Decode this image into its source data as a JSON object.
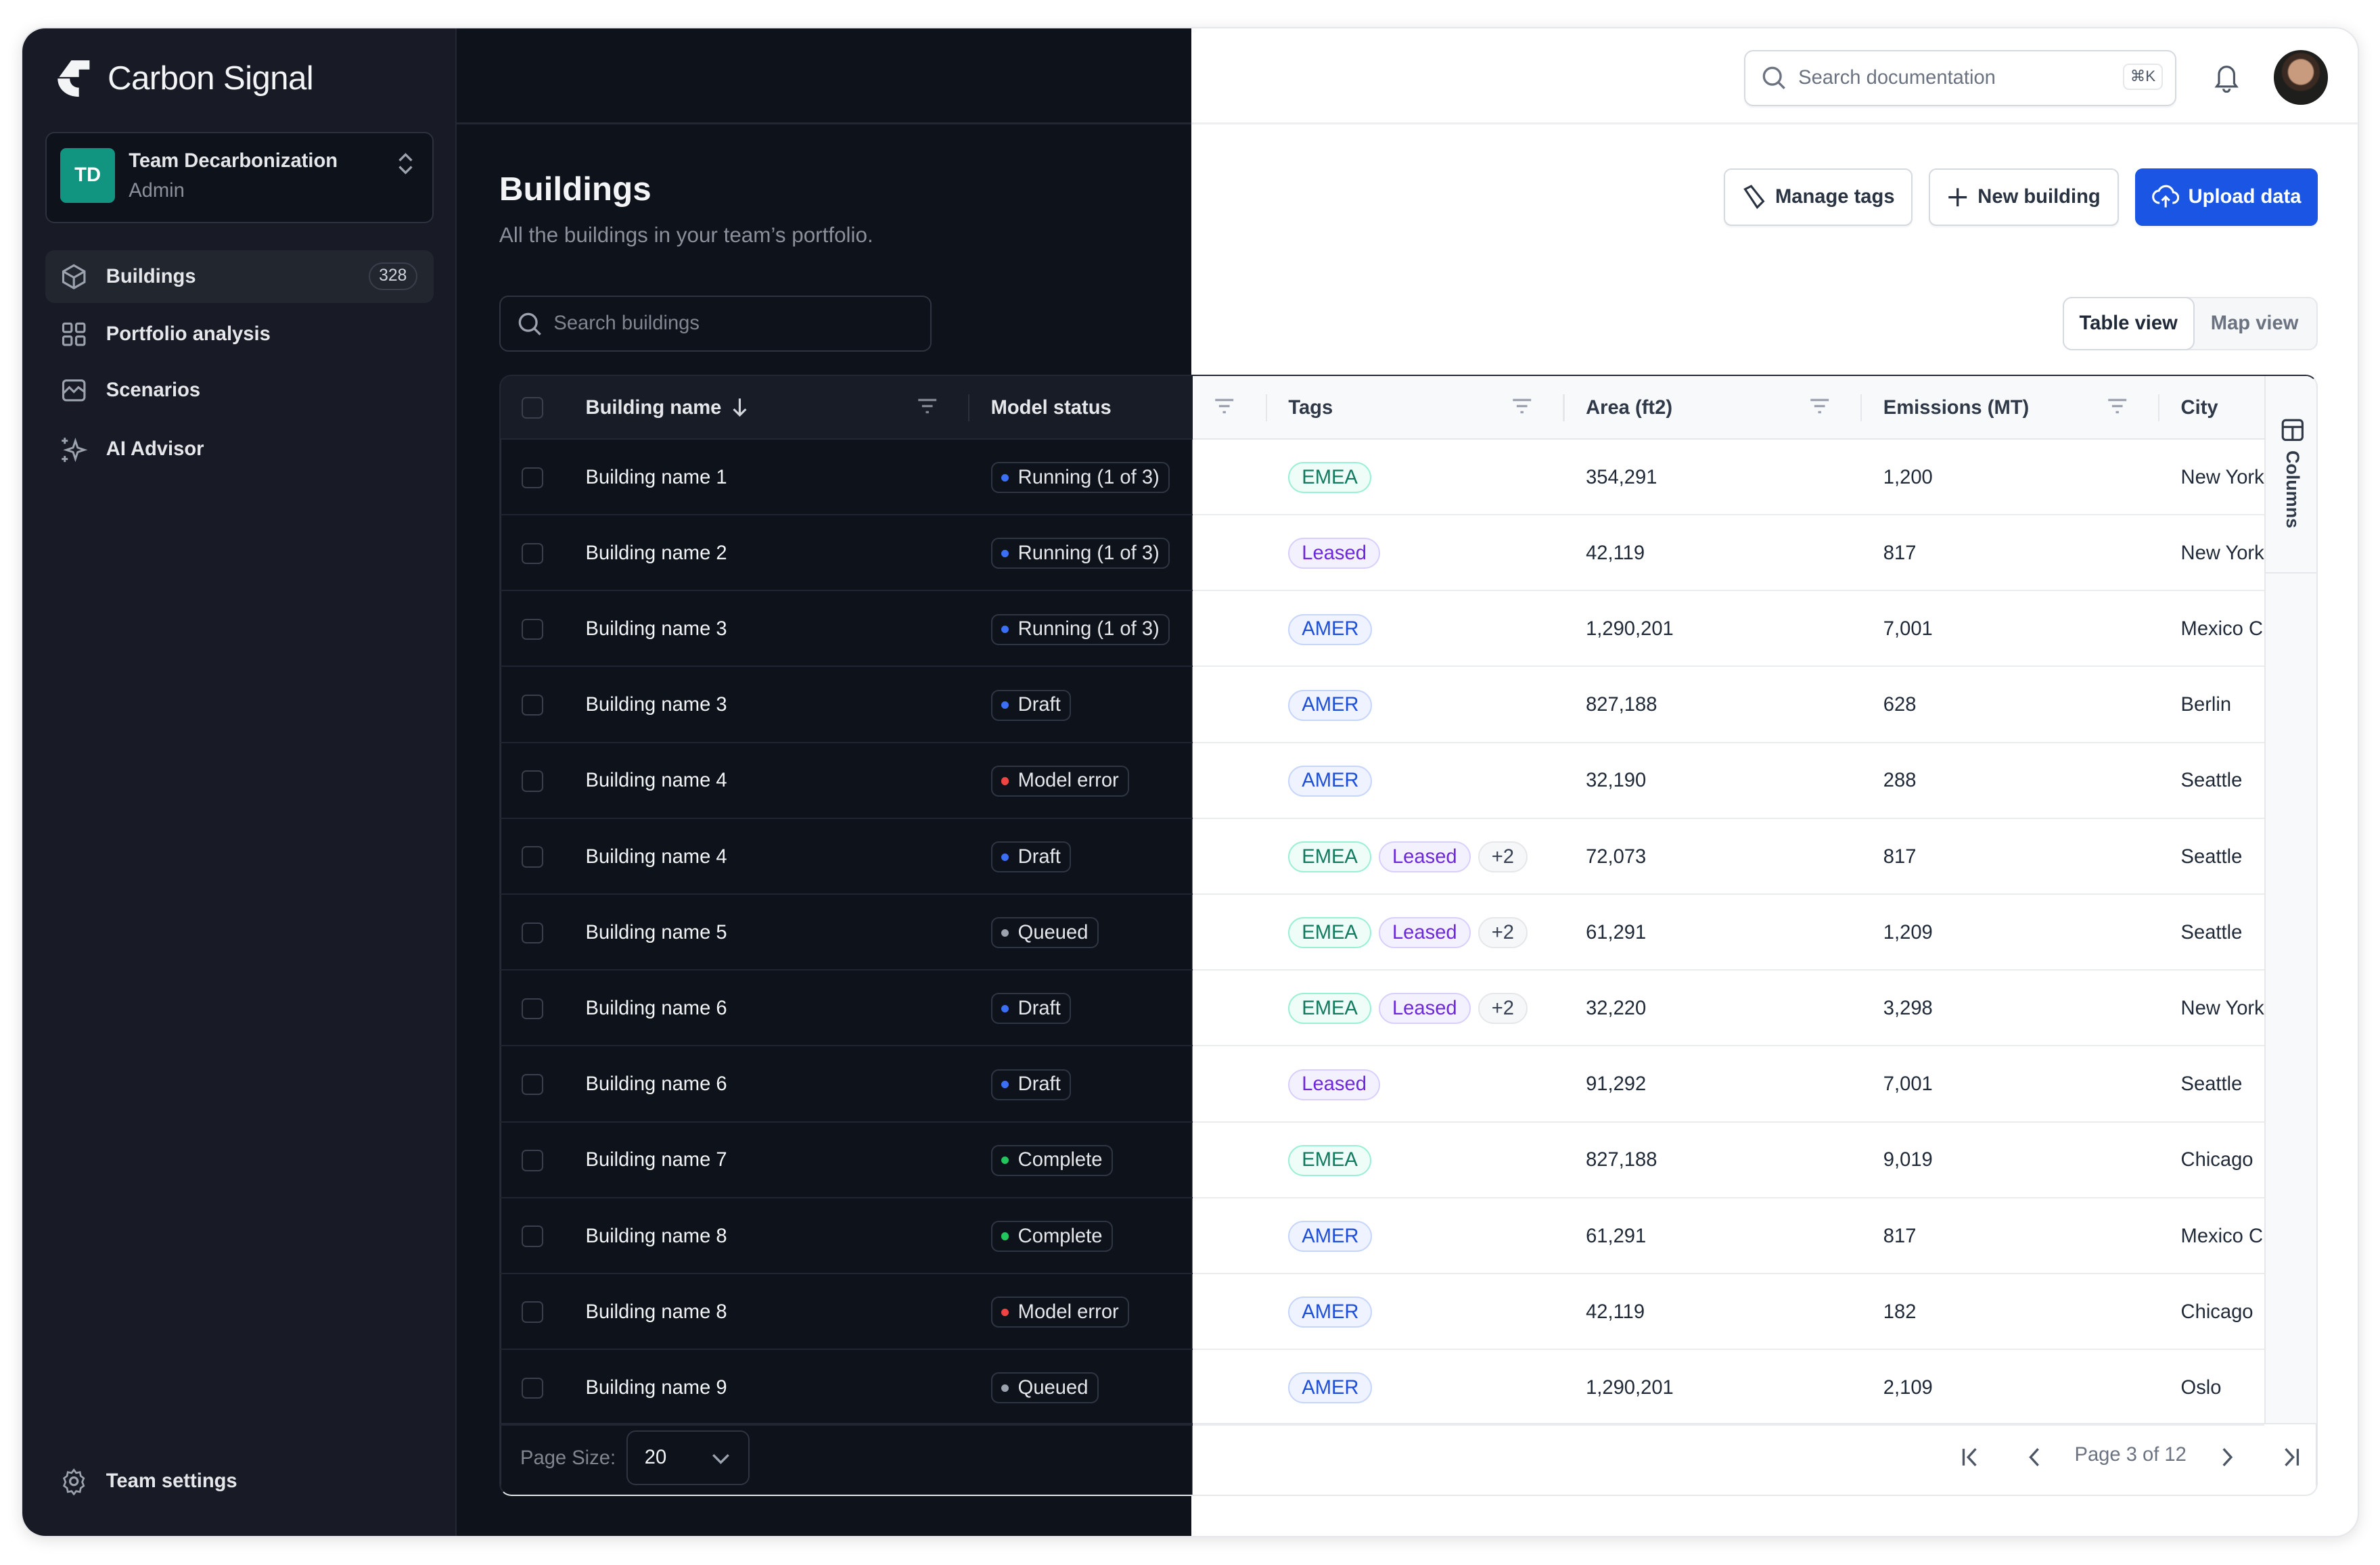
{
  "app": {
    "name": "Carbon Signal"
  },
  "team": {
    "initials": "TD",
    "name": "Team Decarbonization",
    "role": "Admin"
  },
  "sidebar": {
    "items": [
      {
        "label": "Buildings",
        "count": "328",
        "icon": "cube-icon",
        "active": true
      },
      {
        "label": "Portfolio analysis",
        "icon": "grid-icon"
      },
      {
        "label": "Scenarios",
        "icon": "chart-icon"
      },
      {
        "label": "AI Advisor",
        "icon": "sparkles-icon"
      }
    ],
    "settings": "Team settings"
  },
  "topbar": {
    "search_placeholder": "Search documentation",
    "shortcut": "⌘K"
  },
  "page": {
    "title": "Buildings",
    "subtitle": "All the buildings in your team’s portfolio.",
    "search_placeholder": "Search buildings"
  },
  "actions": {
    "manage_tags": "Manage tags",
    "new_building": "New building",
    "upload": "Upload data"
  },
  "views": {
    "table": "Table view",
    "map": "Map view",
    "active": "table"
  },
  "table": {
    "columns": [
      "Building name",
      "Model status",
      "Tags",
      "Area (ft2)",
      "Emissions (MT)",
      "City"
    ],
    "side_panel": "Columns",
    "rows": [
      {
        "name": "Building name 1",
        "status": "Running (1 of 3)",
        "tags": [
          "EMEA"
        ],
        "area": "354,291",
        "emissions": "1,200",
        "city": "New York"
      },
      {
        "name": "Building name 2",
        "status": "Running (1 of 3)",
        "tags": [
          "Leased"
        ],
        "area": "42,119",
        "emissions": "817",
        "city": "New York"
      },
      {
        "name": "Building name 3",
        "status": "Running (1 of 3)",
        "tags": [
          "AMER"
        ],
        "area": "1,290,201",
        "emissions": "7,001",
        "city": "Mexico City"
      },
      {
        "name": "Building name 3",
        "status": "Draft",
        "tags": [
          "AMER"
        ],
        "area": "827,188",
        "emissions": "628",
        "city": "Berlin"
      },
      {
        "name": "Building name 4",
        "status": "Model error",
        "tags": [
          "AMER"
        ],
        "area": "32,190",
        "emissions": "288",
        "city": "Seattle"
      },
      {
        "name": "Building name 4",
        "status": "Draft",
        "tags": [
          "EMEA",
          "Leased",
          "+2"
        ],
        "area": "72,073",
        "emissions": "817",
        "city": "Seattle"
      },
      {
        "name": "Building name 5",
        "status": "Queued",
        "tags": [
          "EMEA",
          "Leased",
          "+2"
        ],
        "area": "61,291",
        "emissions": "1,209",
        "city": "Seattle"
      },
      {
        "name": "Building name 6",
        "status": "Draft",
        "tags": [
          "EMEA",
          "Leased",
          "+2"
        ],
        "area": "32,220",
        "emissions": "3,298",
        "city": "New York"
      },
      {
        "name": "Building name 6",
        "status": "Draft",
        "tags": [
          "Leased"
        ],
        "area": "91,292",
        "emissions": "7,001",
        "city": "Seattle"
      },
      {
        "name": "Building name 7",
        "status": "Complete",
        "tags": [
          "EMEA"
        ],
        "area": "827,188",
        "emissions": "9,019",
        "city": "Chicago"
      },
      {
        "name": "Building name 8",
        "status": "Complete",
        "tags": [
          "AMER"
        ],
        "area": "61,291",
        "emissions": "817",
        "city": "Mexico City"
      },
      {
        "name": "Building name 8",
        "status": "Model error",
        "tags": [
          "AMER"
        ],
        "area": "42,119",
        "emissions": "182",
        "city": "Chicago"
      },
      {
        "name": "Building name 9",
        "status": "Queued",
        "tags": [
          "AMER"
        ],
        "area": "1,290,201",
        "emissions": "2,109",
        "city": "Oslo"
      }
    ]
  },
  "pagination": {
    "page_size_label": "Page Size:",
    "page_size": "20",
    "page_text": "Page 3 of 12"
  },
  "colors": {
    "accent": "#1a56e3",
    "running": "#3b6ff5",
    "draft": "#3b6ff5",
    "error": "#ef4444",
    "queued": "#9ca3af",
    "complete": "#22c55e",
    "team": "#129580"
  }
}
